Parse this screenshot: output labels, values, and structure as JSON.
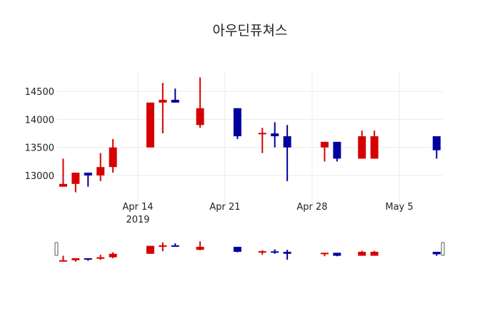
{
  "chart_data": {
    "type": "candlestick",
    "title": "아우딘퓨쳐스",
    "xlabel": "",
    "ylabel": "",
    "ylim": [
      12620,
      14850
    ],
    "grid": true,
    "legend": "none",
    "increasing_color": "#d60000",
    "decreasing_color": "#00009e",
    "x_tick_labels": [
      "Apr 14\n2019",
      "Apr 21",
      "Apr 28",
      "May 5"
    ],
    "y_tick_labels": [
      "13000",
      "13500",
      "14000",
      "14500"
    ],
    "y_ticks": [
      13000,
      13500,
      14000,
      14500
    ],
    "x_range": [
      "2019-04-07",
      "2019-05-09"
    ],
    "rangeslider": true,
    "candles": [
      {
        "date": "2019-04-08",
        "open": 12800,
        "high": 13300,
        "low": 12800,
        "close": 12850
      },
      {
        "date": "2019-04-09",
        "open": 12850,
        "high": 13050,
        "low": 12700,
        "close": 13050
      },
      {
        "date": "2019-04-10",
        "open": 13050,
        "high": 13050,
        "low": 12800,
        "close": 13000
      },
      {
        "date": "2019-04-11",
        "open": 13000,
        "high": 13400,
        "low": 12900,
        "close": 13150
      },
      {
        "date": "2019-04-12",
        "open": 13150,
        "high": 13650,
        "low": 13050,
        "close": 13500
      },
      {
        "date": "2019-04-15",
        "open": 13500,
        "high": 14300,
        "low": 13500,
        "close": 14300
      },
      {
        "date": "2019-04-16",
        "open": 14300,
        "high": 14650,
        "low": 13750,
        "close": 14350
      },
      {
        "date": "2019-04-17",
        "open": 14350,
        "high": 14550,
        "low": 14300,
        "close": 14300
      },
      {
        "date": "2019-04-19",
        "open": 13900,
        "high": 14750,
        "low": 13850,
        "close": 14200
      },
      {
        "date": "2019-04-22",
        "open": 14200,
        "high": 14200,
        "low": 13650,
        "close": 13700
      },
      {
        "date": "2019-04-24",
        "open": 13750,
        "high": 13850,
        "low": 13400,
        "close": 13760
      },
      {
        "date": "2019-04-25",
        "open": 13750,
        "high": 13950,
        "low": 13500,
        "close": 13700
      },
      {
        "date": "2019-04-26",
        "open": 13700,
        "high": 13900,
        "low": 12900,
        "close": 13500
      },
      {
        "date": "2019-04-29",
        "open": 13500,
        "high": 13600,
        "low": 13250,
        "close": 13600
      },
      {
        "date": "2019-04-30",
        "open": 13600,
        "high": 13600,
        "low": 13250,
        "close": 13300
      },
      {
        "date": "2019-05-02",
        "open": 13300,
        "high": 13800,
        "low": 13300,
        "close": 13700
      },
      {
        "date": "2019-05-03",
        "open": 13300,
        "high": 13800,
        "low": 13300,
        "close": 13700
      },
      {
        "date": "2019-05-08",
        "open": 13700,
        "high": 13700,
        "low": 13300,
        "close": 13450
      }
    ]
  }
}
